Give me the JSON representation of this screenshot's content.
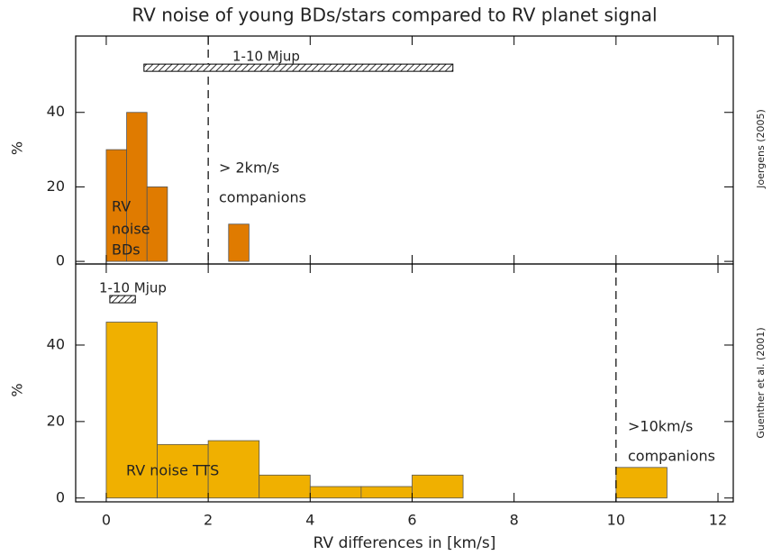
{
  "chart_data": [
    {
      "type": "histogram",
      "title": "RV noise of young BDs/stars compared to RV planet signal",
      "ylabel": "%",
      "source": "Joergens (2005)",
      "bins": [
        0,
        0.4,
        0.8,
        1.2,
        1.6,
        2,
        2.4,
        2.8
      ],
      "values": [
        30,
        40,
        20,
        0,
        0,
        0,
        10
      ],
      "color": "#e07b00",
      "xlim": [
        -0.6,
        12.3
      ],
      "xticks": [
        0,
        2,
        4,
        6,
        8,
        10,
        12
      ],
      "ylim": [
        -0.7,
        60.5
      ],
      "yticks": [
        0,
        20,
        40
      ],
      "vline": 2,
      "band": {
        "label": "1-10 Mjup",
        "range": [
          0.74,
          6.8
        ],
        "y": 52
      },
      "annotations": [
        "RV",
        "noise",
        "BDs",
        "> 2km/s",
        "companions"
      ]
    },
    {
      "type": "histogram",
      "xlabel": "RV differences in [km/s]",
      "ylabel": "%",
      "source": "Guenther et al. (2001)",
      "bins": [
        0,
        1,
        2,
        3,
        4,
        5,
        6,
        7,
        8,
        9,
        10,
        11
      ],
      "values": [
        46,
        14,
        15,
        6,
        3,
        3,
        6,
        0,
        0,
        0,
        8
      ],
      "color": "#f0b000",
      "xlim": [
        -0.6,
        12.3
      ],
      "xticks": [
        0,
        2,
        4,
        6,
        8,
        10,
        12
      ],
      "ylim": [
        -1,
        61.2
      ],
      "yticks": [
        0,
        20,
        40
      ],
      "vline": 10,
      "band": {
        "label": "1-10 Mjup",
        "range": [
          0.07,
          0.57
        ],
        "y": 52
      },
      "annotations": [
        "RV noise TTS",
        ">10km/s",
        "companions"
      ]
    }
  ]
}
